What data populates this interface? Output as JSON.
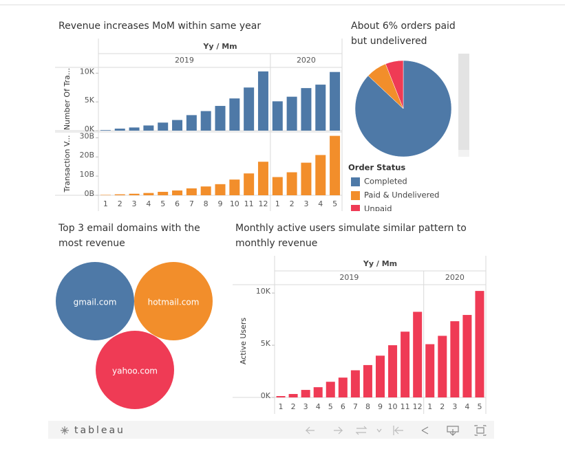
{
  "chart_data": [
    {
      "type": "bar",
      "title": "Revenue increases MoM within same year",
      "x_label": "Yy / Mm",
      "groups": [
        {
          "name": "2019",
          "categories": [
            "1",
            "2",
            "3",
            "4",
            "5",
            "6",
            "7",
            "8",
            "9",
            "10",
            "11",
            "12"
          ]
        },
        {
          "name": "2020",
          "categories": [
            "1",
            "2",
            "3",
            "4",
            "5"
          ]
        }
      ],
      "panels": [
        {
          "y_label": "Number Of Tra...",
          "color": "#4e79a7",
          "values": [
            100,
            350,
            550,
            900,
            1400,
            1850,
            2700,
            3400,
            4300,
            5600,
            7500,
            10300,
            5100,
            5900,
            7400,
            8000,
            10200
          ],
          "ylim": [
            0,
            11000
          ],
          "yticks": [
            {
              "value": 0,
              "label": "0K"
            },
            {
              "value": 5000,
              "label": "5K"
            },
            {
              "value": 10000,
              "label": "10K"
            }
          ]
        },
        {
          "y_label": "Transaction V...",
          "color": "#f28e2b",
          "values": [
            200000000,
            500000000,
            800000000,
            1200000000,
            1800000000,
            2500000000,
            3600000000,
            4600000000,
            5800000000,
            8200000000,
            11400000000,
            17500000000,
            9500000000,
            12000000000,
            17000000000,
            21000000000,
            31000000000
          ],
          "ylim": [
            0,
            33000000000
          ],
          "yticks": [
            {
              "value": 0,
              "label": "0B"
            },
            {
              "value": 10000000000,
              "label": "10B"
            },
            {
              "value": 20000000000,
              "label": "20B"
            },
            {
              "value": 30000000000,
              "label": "30B"
            }
          ]
        }
      ]
    },
    {
      "type": "pie",
      "title": "About 6% orders paid but undelivered",
      "legend_title": "Order Status",
      "categories": [
        "Completed",
        "Paid & Undelivered",
        "Unpaid"
      ],
      "values": [
        87,
        7,
        6
      ],
      "colors": [
        "#4e79a7",
        "#f28e2b",
        "#ef3b55"
      ]
    },
    {
      "type": "bubble",
      "title": "Top 3 email domains with the most revenue",
      "categories": [
        "gmail.com",
        "hotmail.com",
        "yahoo.com"
      ],
      "colors": [
        "#4e79a7",
        "#f28e2b",
        "#ef3b55"
      ]
    },
    {
      "type": "bar",
      "title": "Monthly active users simulate similar pattern to monthly revenue",
      "x_label": "Yy / Mm",
      "groups": [
        {
          "name": "2019",
          "categories": [
            "1",
            "2",
            "3",
            "4",
            "5",
            "6",
            "7",
            "8",
            "9",
            "10",
            "11",
            "12"
          ]
        },
        {
          "name": "2020",
          "categories": [
            "1",
            "2",
            "3",
            "4",
            "5"
          ]
        }
      ],
      "panels": [
        {
          "y_label": "Active Users",
          "color": "#ef3b55",
          "values": [
            130,
            330,
            720,
            980,
            1500,
            1900,
            2600,
            3100,
            4000,
            5000,
            6300,
            8200,
            5100,
            5900,
            7300,
            7900,
            10200
          ],
          "ylim": [
            0,
            10800
          ],
          "yticks": [
            {
              "value": 0,
              "label": "0K"
            },
            {
              "value": 5000,
              "label": "5K"
            },
            {
              "value": 10000,
              "label": "10K"
            }
          ]
        }
      ]
    }
  ],
  "footer": {
    "logo": "tableau"
  }
}
